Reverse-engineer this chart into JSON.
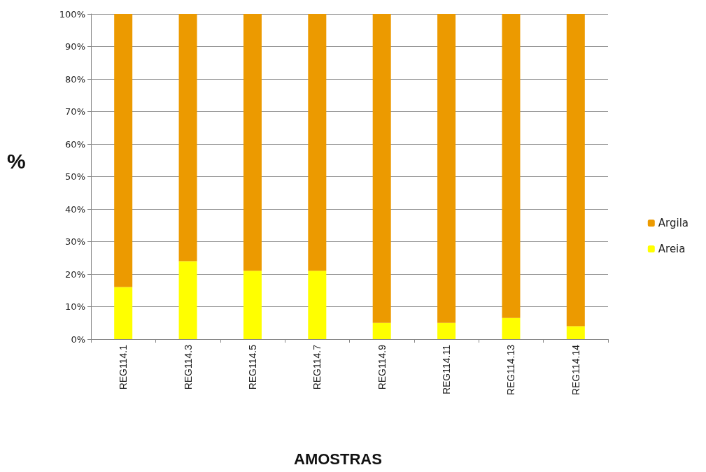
{
  "chart_data": {
    "type": "bar",
    "stacked": true,
    "xlabel": "AMOSTRAS",
    "ylabel": "%",
    "categories": [
      "REG114.1",
      "REG114.3",
      "REG114.5",
      "REG114.7",
      "REG114.9",
      "REG114.11",
      "REG114.13",
      "REG114.14"
    ],
    "series": [
      {
        "name": "Areia",
        "color": "#ffff00",
        "values": [
          16,
          24,
          21,
          21,
          5,
          5,
          6.5,
          4
        ]
      },
      {
        "name": "Argila",
        "color": "#ec9a00",
        "values": [
          84,
          76,
          79,
          79,
          95,
          95,
          93.5,
          96
        ]
      }
    ],
    "ylim": [
      0,
      100
    ],
    "yticks": [
      {
        "value": 0,
        "label": "0%"
      },
      {
        "value": 10,
        "label": "10%"
      },
      {
        "value": 20,
        "label": "20%"
      },
      {
        "value": 30,
        "label": "30%"
      },
      {
        "value": 40,
        "label": "40%"
      },
      {
        "value": 50,
        "label": "50%"
      },
      {
        "value": 60,
        "label": "60%"
      },
      {
        "value": 70,
        "label": "70%"
      },
      {
        "value": 80,
        "label": "80%"
      },
      {
        "value": 90,
        "label": "90%"
      },
      {
        "value": 100,
        "label": "100%"
      }
    ],
    "grid": "y",
    "legend": "right"
  }
}
